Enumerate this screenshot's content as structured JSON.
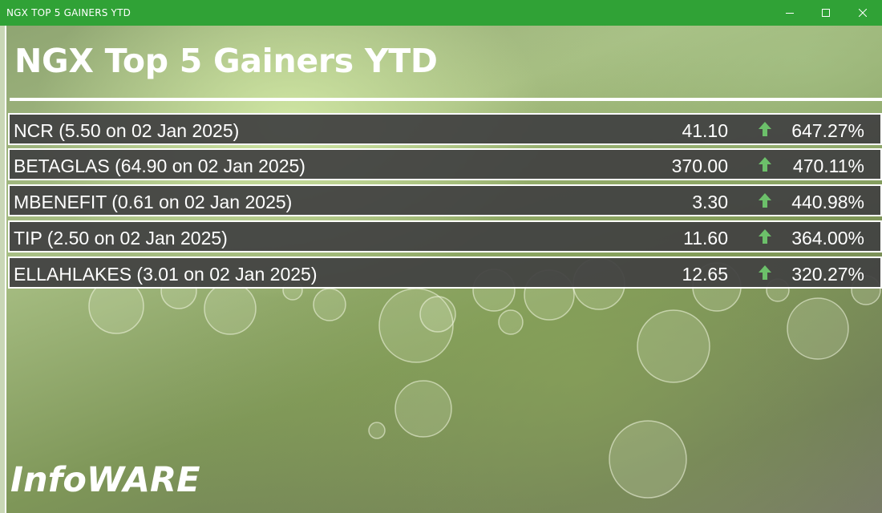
{
  "window": {
    "title": "NGX TOP 5 GAINERS YTD",
    "controls": [
      "minimize-icon",
      "maximize-icon",
      "close-icon"
    ],
    "accent_color": "#30a236"
  },
  "heading": "NGX Top 5 Gainers YTD",
  "gainers": [
    {
      "label": "NCR (5.50 on 02 Jan 2025)",
      "price": "41.10",
      "change": "647.27%",
      "direction": "up"
    },
    {
      "label": "BETAGLAS (64.90 on 02 Jan 2025)",
      "price": "370.00",
      "change": "470.11%",
      "direction": "up"
    },
    {
      "label": "MBENEFIT (0.61 on 02 Jan 2025)",
      "price": "3.30",
      "change": "440.98%",
      "direction": "up"
    },
    {
      "label": "TIP (2.50 on 02 Jan 2025)",
      "price": "11.60",
      "change": "364.00%",
      "direction": "up"
    },
    {
      "label": "ELLAHLAKES (3.01 on 02 Jan 2025)",
      "price": "12.65",
      "change": "320.27%",
      "direction": "up"
    }
  ],
  "up_arrow_color": "#6cc06a",
  "row_color": "#424242",
  "brand": "InfoWARE"
}
